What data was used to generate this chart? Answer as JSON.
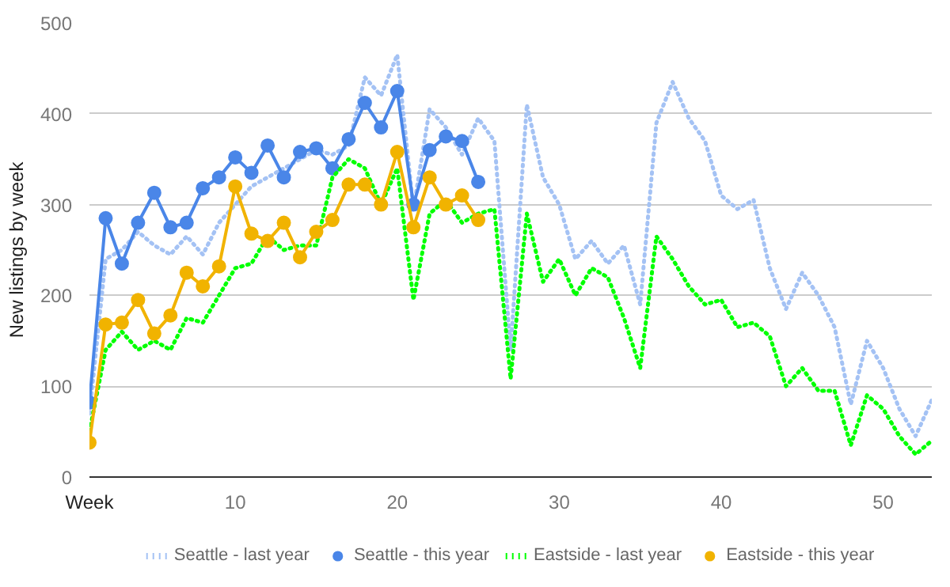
{
  "chart_data": {
    "type": "line",
    "xlabel": "Week",
    "ylabel": "New listings by week",
    "xlim": [
      1,
      53
    ],
    "ylim": [
      0,
      500
    ],
    "xticks": [
      10,
      20,
      30,
      40,
      50
    ],
    "yticks": [
      0,
      100,
      200,
      300,
      400,
      500
    ],
    "grid": "y",
    "legend": "bottom",
    "series": [
      {
        "name": "Seattle - last year",
        "color": "#a4c2f4",
        "line_style": "dotted",
        "marker": "none",
        "x": [
          1,
          2,
          3,
          4,
          5,
          6,
          7,
          8,
          9,
          10,
          11,
          12,
          13,
          14,
          15,
          16,
          17,
          18,
          19,
          20,
          21,
          22,
          23,
          24,
          25,
          26,
          27,
          28,
          29,
          30,
          31,
          32,
          33,
          34,
          35,
          36,
          37,
          38,
          39,
          40,
          41,
          42,
          43,
          44,
          45,
          46,
          47,
          48,
          49,
          50,
          51,
          52,
          53
        ],
        "values": [
          70,
          240,
          250,
          270,
          255,
          245,
          265,
          245,
          280,
          300,
          320,
          330,
          340,
          350,
          360,
          355,
          365,
          440,
          420,
          465,
          295,
          405,
          385,
          355,
          395,
          370,
          140,
          410,
          330,
          300,
          240,
          260,
          235,
          255,
          190,
          390,
          435,
          395,
          370,
          310,
          295,
          305,
          230,
          185,
          225,
          200,
          165,
          80,
          150,
          120,
          75,
          45,
          85
        ]
      },
      {
        "name": "Seattle - this year",
        "color": "#4a86e8",
        "line_style": "solid",
        "marker": "circle",
        "x": [
          1,
          2,
          3,
          4,
          5,
          6,
          7,
          8,
          9,
          10,
          11,
          12,
          13,
          14,
          15,
          16,
          17,
          18,
          19,
          20,
          21,
          22,
          23,
          24,
          25
        ],
        "values": [
          82,
          285,
          235,
          280,
          313,
          275,
          280,
          318,
          330,
          352,
          335,
          365,
          330,
          358,
          362,
          340,
          372,
          412,
          385,
          425,
          300,
          360,
          375,
          370,
          325
        ]
      },
      {
        "name": "Eastside - last year",
        "color": "#00ff00",
        "line_style": "dotted",
        "marker": "none",
        "x": [
          1,
          2,
          3,
          4,
          5,
          6,
          7,
          8,
          9,
          10,
          11,
          12,
          13,
          14,
          15,
          16,
          17,
          18,
          19,
          20,
          21,
          22,
          23,
          24,
          25,
          26,
          27,
          28,
          29,
          30,
          31,
          32,
          33,
          34,
          35,
          36,
          37,
          38,
          39,
          40,
          41,
          42,
          43,
          44,
          45,
          46,
          47,
          48,
          49,
          50,
          51,
          52,
          53
        ],
        "values": [
          50,
          140,
          160,
          140,
          150,
          140,
          175,
          170,
          200,
          230,
          235,
          265,
          250,
          255,
          255,
          330,
          350,
          340,
          300,
          340,
          195,
          290,
          305,
          280,
          290,
          295,
          108,
          290,
          215,
          240,
          200,
          230,
          220,
          175,
          120,
          265,
          240,
          210,
          190,
          195,
          165,
          170,
          155,
          100,
          120,
          95,
          95,
          35,
          90,
          75,
          45,
          25,
          40
        ]
      },
      {
        "name": "Eastside - this year",
        "color": "#f1b300",
        "line_style": "solid",
        "marker": "circle",
        "x": [
          1,
          2,
          3,
          4,
          5,
          6,
          7,
          8,
          9,
          10,
          11,
          12,
          13,
          14,
          15,
          16,
          17,
          18,
          19,
          20,
          21,
          22,
          23,
          24,
          25
        ],
        "values": [
          38,
          168,
          170,
          195,
          158,
          178,
          225,
          210,
          232,
          320,
          268,
          260,
          280,
          242,
          270,
          283,
          322,
          322,
          300,
          358,
          275,
          330,
          300,
          310,
          283
        ]
      }
    ]
  }
}
